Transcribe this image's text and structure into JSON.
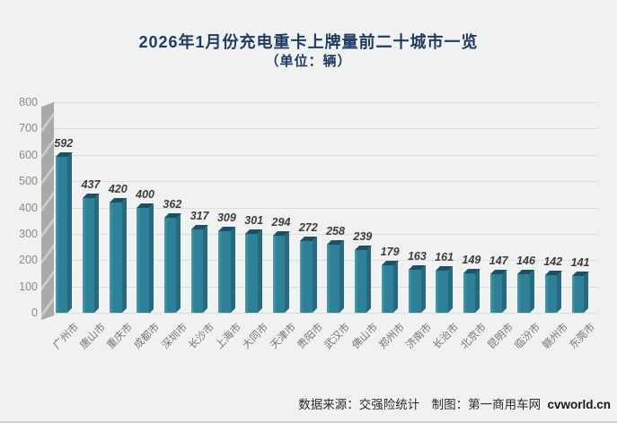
{
  "window": {
    "background": "#f0f1f1"
  },
  "header": {
    "title_line1": "2026年1月份充电重卡上牌量前二十城市一览",
    "title_line2": "（单位：辆）",
    "title_color": "#1f3b62"
  },
  "chart_data": {
    "type": "bar",
    "style": "3d-column",
    "title": "2026年1月份充电重卡上牌量前二十城市一览",
    "subtitle": "（单位：辆）",
    "categories": [
      "广州市",
      "唐山市",
      "重庆市",
      "成都市",
      "深圳市",
      "长沙市",
      "上海市",
      "大同市",
      "天津市",
      "贵阳市",
      "武汉市",
      "佛山市",
      "郑州市",
      "济南市",
      "长治市",
      "北京市",
      "昆明市",
      "临汾市",
      "赣州市",
      "东莞市"
    ],
    "values": [
      592,
      437,
      420,
      400,
      362,
      317,
      309,
      301,
      294,
      272,
      258,
      239,
      179,
      163,
      161,
      149,
      147,
      146,
      142,
      141
    ],
    "xlabel": "",
    "ylabel": "",
    "ylim": [
      0,
      800
    ],
    "yticks": [
      0,
      100,
      200,
      300,
      400,
      500,
      600,
      700,
      800
    ],
    "grid": true,
    "legend": "none",
    "colors": {
      "bar_front": "#2e8096",
      "bar_top": "#1c5063",
      "bar_side": "#276a7f",
      "gridline": "#dcdcdd",
      "wall": "#a9a9a9",
      "wall_bevel": "#cccccc",
      "value_label": "#3c3c3c",
      "axis_tick_label": "#8a8a8a",
      "category_label": "#757575"
    }
  },
  "footer": {
    "source_label": "数据来源：交强险统计",
    "chart_by_label": "制图：第一商用车网",
    "site": "cvworld.cn"
  }
}
